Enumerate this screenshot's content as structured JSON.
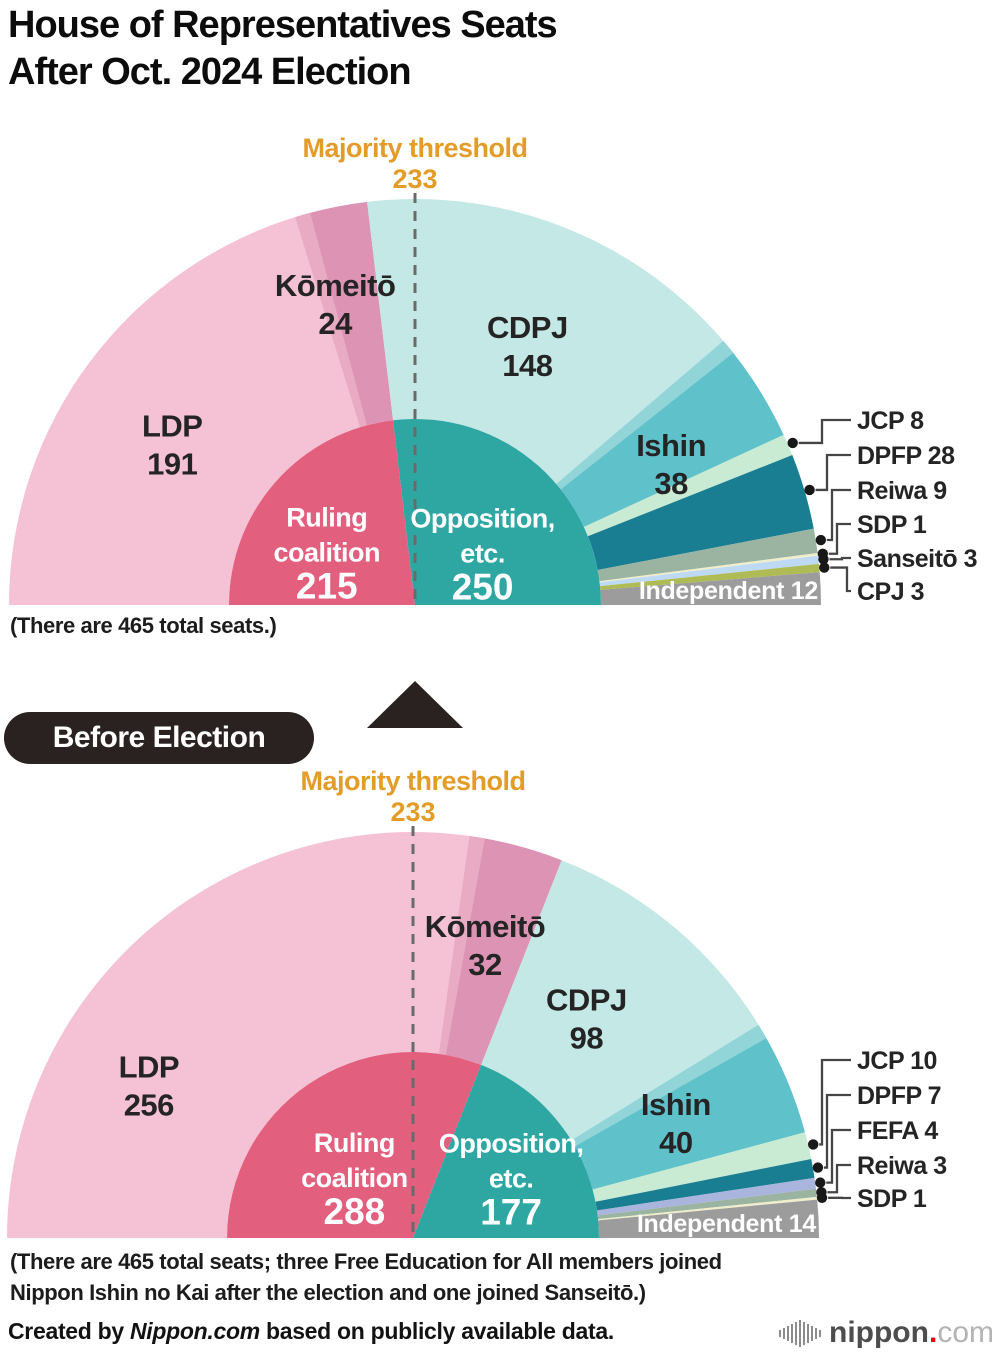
{
  "title": {
    "line1": "House of Representatives Seats",
    "line2": "After Oct. 2024 Election"
  },
  "divider": {
    "before_label": "Before Election",
    "pill_color": "#2a2220",
    "triangle_icon": "up-triangle-icon"
  },
  "footer": {
    "credit_prefix": "Created by ",
    "credit_brand": "Nippon.com",
    "credit_suffix": " based on publicly available data.",
    "logo": {
      "icon": "soundwave-bars-icon",
      "text_main": "nippon",
      "text_dot": ".",
      "text_tld": "com",
      "dot_color": "#e60012"
    }
  },
  "chart_data": [
    {
      "id": "after-election",
      "type": "pie",
      "variant": "semicircle-parliament",
      "total": 465,
      "footnote_lines": [
        "(There are 465 total seats.)"
      ],
      "threshold": {
        "label": "Majority threshold",
        "value": "233",
        "color": "#e39c28"
      },
      "inner_series": [
        {
          "name": "Ruling coalition",
          "label_lines": [
            "Ruling",
            "coalition"
          ],
          "value": 215,
          "color": "#e2607e",
          "label_deg": 41.6,
          "label_r": 118
        },
        {
          "name": "Opposition, etc.",
          "label_lines": [
            "Opposition,",
            "etc."
          ],
          "value": 250,
          "color": "#2ea7a3",
          "label_deg": 131,
          "label_r": 103
        }
      ],
      "segments": [
        {
          "name": "LDP",
          "value": 191,
          "color": "#f5c1d4",
          "label": "inside",
          "label_deg": 36.5,
          "label_r": 302
        },
        {
          "name": "Kōmeitō",
          "value": 24,
          "color": "#dc93b4",
          "label": "inside",
          "label_deg": 76,
          "label_r": 330
        },
        {
          "name": "CDPJ",
          "value": 148,
          "color": "#c4e8e6",
          "label": "inside",
          "label_deg": 112,
          "label_r": 300
        },
        {
          "name": "Ishin",
          "value": 38,
          "color": "#5fc1c9",
          "label": "inside",
          "label_deg": 148,
          "label_r": 302
        },
        {
          "name": "JCP",
          "value": 8,
          "color": "#c9ead3",
          "label": "leader"
        },
        {
          "name": "DPFP",
          "value": 28,
          "color": "#1a7e93",
          "label": "leader"
        },
        {
          "name": "Reiwa",
          "value": 9,
          "color": "#9bb4a1",
          "label": "leader"
        },
        {
          "name": "SDP",
          "value": 1,
          "color": "#efedcb",
          "label": "leader"
        },
        {
          "name": "Sanseitō",
          "value": 3,
          "color": "#bed9f3",
          "label": "leader"
        },
        {
          "name": "CPJ",
          "value": 3,
          "color": "#afbc55",
          "label": "leader"
        },
        {
          "name": "Independent",
          "value": 12,
          "color": "#9c9c9c",
          "label": "band"
        }
      ]
    },
    {
      "id": "before-election",
      "type": "pie",
      "variant": "semicircle-parliament",
      "total": 465,
      "footnote_lines": [
        "(There are 465 total seats; three Free Education for All members joined",
        "Nippon Ishin no Kai after the election and one joined Sanseitō.)"
      ],
      "threshold": {
        "label": "Majority threshold",
        "value": "233",
        "color": "#e39c28"
      },
      "inner_series": [
        {
          "name": "Ruling coalition",
          "label_lines": [
            "Ruling",
            "coalition"
          ],
          "value": 288,
          "color": "#e2607e",
          "label_deg": 55.7,
          "label_r": 104
        },
        {
          "name": "Opposition, etc.",
          "label_lines": [
            "Opposition,",
            "etc."
          ],
          "value": 177,
          "color": "#2ea7a3",
          "label_deg": 139,
          "label_r": 130
        }
      ],
      "segments": [
        {
          "name": "LDP",
          "value": 256,
          "color": "#f5c1d4",
          "label": "inside",
          "label_deg": 33,
          "label_r": 315
        },
        {
          "name": "Kōmeitō",
          "value": 32,
          "color": "#dc93b4",
          "label": "inside",
          "label_deg": 103,
          "label_r": 320
        },
        {
          "name": "CDPJ",
          "value": 98,
          "color": "#c4e8e6",
          "label": "inside",
          "label_deg": 126,
          "label_r": 295
        },
        {
          "name": "Ishin",
          "value": 40,
          "color": "#5fc1c9",
          "label": "inside",
          "label_deg": 153,
          "label_r": 295
        },
        {
          "name": "JCP",
          "value": 10,
          "color": "#c9ead3",
          "label": "leader"
        },
        {
          "name": "DPFP",
          "value": 7,
          "color": "#1a7e93",
          "label": "leader"
        },
        {
          "name": "FEFA",
          "value": 4,
          "color": "#a9b5dd",
          "label": "leader"
        },
        {
          "name": "Reiwa",
          "value": 3,
          "color": "#9bb4a1",
          "label": "leader"
        },
        {
          "name": "SDP",
          "value": 1,
          "color": "#efedcb",
          "label": "leader"
        },
        {
          "name": "Independent",
          "value": 14,
          "color": "#9c9c9c",
          "label": "band"
        }
      ]
    }
  ]
}
